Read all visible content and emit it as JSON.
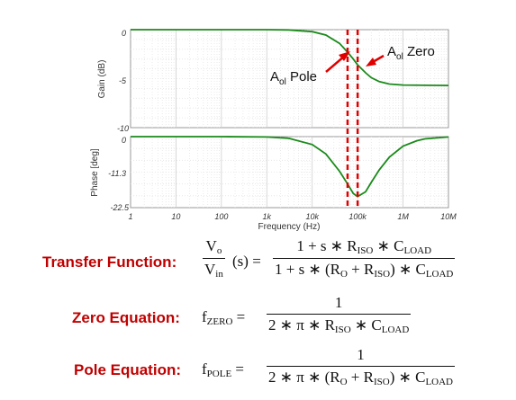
{
  "chart_data": [
    {
      "type": "line",
      "ylabel": "Gain (dB)",
      "x_scale": "log",
      "xlim": [
        1,
        10000000
      ],
      "ylim": [
        -10,
        0
      ],
      "y_ticks": [
        "0",
        "-5",
        "-10"
      ],
      "grid": true,
      "series_color": "#1a8a1a",
      "series": [
        {
          "x": [
            1,
            10,
            100,
            1000,
            3000,
            10000,
            20000,
            40000,
            60000,
            80000,
            100000,
            150000,
            200000,
            300000,
            500000,
            1000000,
            3000000,
            10000000
          ],
          "values": [
            0,
            0,
            0,
            0,
            -0.03,
            -0.2,
            -0.55,
            -1.4,
            -2.3,
            -3.0,
            -3.6,
            -4.4,
            -4.9,
            -5.3,
            -5.55,
            -5.65,
            -5.68,
            -5.7
          ]
        }
      ]
    },
    {
      "type": "line",
      "ylabel": "Phase [deg]",
      "xlabel": "Frequency (Hz)",
      "x_scale": "log",
      "xlim": [
        1,
        10000000
      ],
      "ylim": [
        -22.5,
        0
      ],
      "y_ticks": [
        "0",
        "-11.3",
        "-22.5"
      ],
      "x_ticks": [
        "1",
        "10",
        "100",
        "1k",
        "10k",
        "100k",
        "1M",
        "10M"
      ],
      "grid": true,
      "series_color": "#1a8a1a",
      "series": [
        {
          "x": [
            1,
            10,
            100,
            1000,
            3000,
            10000,
            20000,
            40000,
            60000,
            80000,
            100000,
            150000,
            200000,
            300000,
            500000,
            1000000,
            2000000,
            3000000,
            10000000
          ],
          "values": [
            0,
            0,
            0,
            -0.1,
            -0.5,
            -2.5,
            -5.5,
            -11,
            -15,
            -18,
            -19,
            -17.5,
            -14.5,
            -10.5,
            -6.5,
            -3,
            -1.3,
            -0.7,
            -0.1
          ]
        }
      ]
    }
  ],
  "markers": {
    "color": "#e00000",
    "pole_x": 60000,
    "zero_x": 100000
  },
  "annotations": {
    "zero_label_prefix": "A",
    "zero_label_sub": "ol",
    "zero_label_suffix": " Zero",
    "pole_label_prefix": "A",
    "pole_label_sub": "ol",
    "pole_label_suffix": " Pole"
  },
  "equations": {
    "transfer": {
      "label": "Transfer Function:",
      "lhs_num": "V",
      "lhs_num_sub": "o",
      "lhs_den": "V",
      "lhs_den_sub": "in",
      "lhs_arg": "(s) =",
      "rhs_num": "1 + s ∗ R",
      "rhs_num_sub1": "ISO",
      "rhs_num_mid": " ∗ C",
      "rhs_num_sub2": "LOAD",
      "rhs_den": "1 + s ∗ (R",
      "rhs_den_sub1": "O",
      "rhs_den_mid1": " + R",
      "rhs_den_sub2": "ISO",
      "rhs_den_mid2": ") ∗ C",
      "rhs_den_sub3": "LOAD"
    },
    "zero": {
      "label": "Zero Equation:",
      "lhs": "f",
      "lhs_sub": "ZERO",
      "eq": "=",
      "num": "1",
      "den": "2 ∗ π ∗ R",
      "den_sub1": "ISO",
      "den_mid": " ∗ C",
      "den_sub2": "LOAD"
    },
    "pole": {
      "label": "Pole Equation:",
      "lhs": "f",
      "lhs_sub": "POLE",
      "eq": "=",
      "num": "1",
      "den": "2 ∗ π ∗ (R",
      "den_sub1": "O",
      "den_mid1": " + R",
      "den_sub2": "ISO",
      "den_mid2": ") ∗ C",
      "den_sub3": "LOAD"
    }
  }
}
